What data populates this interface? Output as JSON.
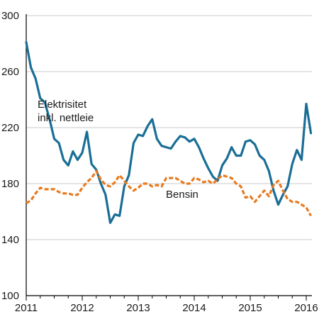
{
  "chart_data": {
    "type": "line",
    "title": "",
    "xlabel": "",
    "ylabel": "",
    "ylim": [
      100,
      300
    ],
    "yticks": [
      "100",
      "140",
      "180",
      "220",
      "260",
      "300"
    ],
    "xlim": [
      "2011-01",
      "2016-04"
    ],
    "xticks": [
      {
        "label": "2011",
        "date": "2011-01"
      },
      {
        "label": "2012",
        "date": "2012-01"
      },
      {
        "label": "2013",
        "date": "2013-01"
      },
      {
        "label": "2014",
        "date": "2014-01"
      },
      {
        "label": "2015",
        "date": "2015-01"
      },
      {
        "label": "2016",
        "date": "2016-01"
      }
    ],
    "grid": "horizontal",
    "legend": "none",
    "series": [
      {
        "name": "Elektrisitet inkl. nettleie",
        "label_lines": [
          "Elektrisitet",
          "inkl. nettleie"
        ],
        "color": "#1a6e96",
        "style": "solid",
        "start": "2011-01",
        "frequency": "monthly",
        "values": [
          281,
          263,
          255,
          241,
          238,
          226,
          212,
          209,
          197,
          193,
          203,
          197,
          202,
          217,
          194,
          190,
          180,
          172,
          152,
          158,
          157,
          178,
          186,
          209,
          215,
          214,
          221,
          226,
          212,
          207,
          206,
          205,
          210,
          214,
          213,
          210,
          212,
          206,
          198,
          191,
          185,
          182,
          193,
          198,
          206,
          200,
          200,
          210,
          211,
          208,
          200,
          197,
          189,
          175,
          165,
          172,
          178,
          194,
          204,
          197,
          237,
          216
        ]
      },
      {
        "name": "Bensin",
        "label_lines": [
          "Bensin"
        ],
        "color": "#e87a1e",
        "style": "dashed",
        "start": "2011-01",
        "frequency": "monthly",
        "values": [
          166,
          168,
          173,
          177,
          176,
          176,
          176,
          174,
          173,
          173,
          172,
          172,
          177,
          181,
          184,
          189,
          183,
          179,
          178,
          181,
          186,
          182,
          178,
          175,
          177,
          180,
          180,
          178,
          179,
          178,
          184,
          184,
          184,
          182,
          180,
          180,
          184,
          183,
          181,
          182,
          180,
          183,
          186,
          185,
          184,
          180,
          178,
          170,
          171,
          167,
          171,
          175,
          171,
          179,
          182,
          175,
          169,
          167,
          167,
          165,
          163,
          157
        ]
      }
    ]
  }
}
